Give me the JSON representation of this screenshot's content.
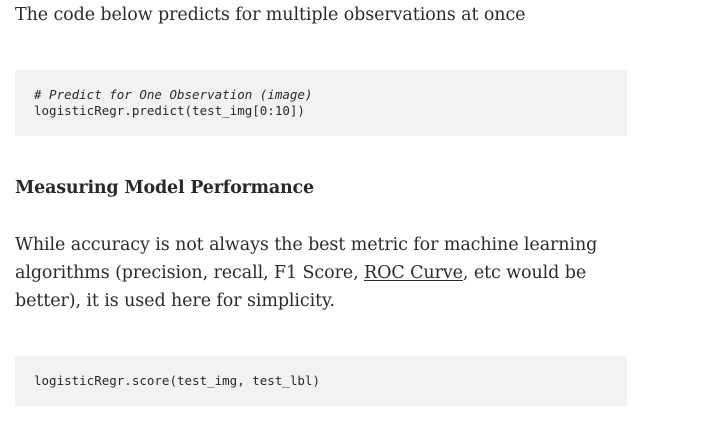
{
  "intro": {
    "text": "The code below predicts for multiple observations at once"
  },
  "code_block_1": {
    "comment": "# Predict for One Observation (image)",
    "line": "logisticRegr.predict(test_img[0:10])"
  },
  "section": {
    "heading": "Measuring Model Performance"
  },
  "body": {
    "before_link": "While accuracy is not always the best metric for machine learning algorithms (precision, recall, F1 Score, ",
    "link_text": "ROC Curve",
    "after_link": ", etc would be better), it is used here for simplicity."
  },
  "code_block_2": {
    "line": "logisticRegr.score(test_img, test_lbl)"
  },
  "colors": {
    "text": "#292929",
    "code_background": "#f2f2f2",
    "page_background": "#ffffff"
  }
}
